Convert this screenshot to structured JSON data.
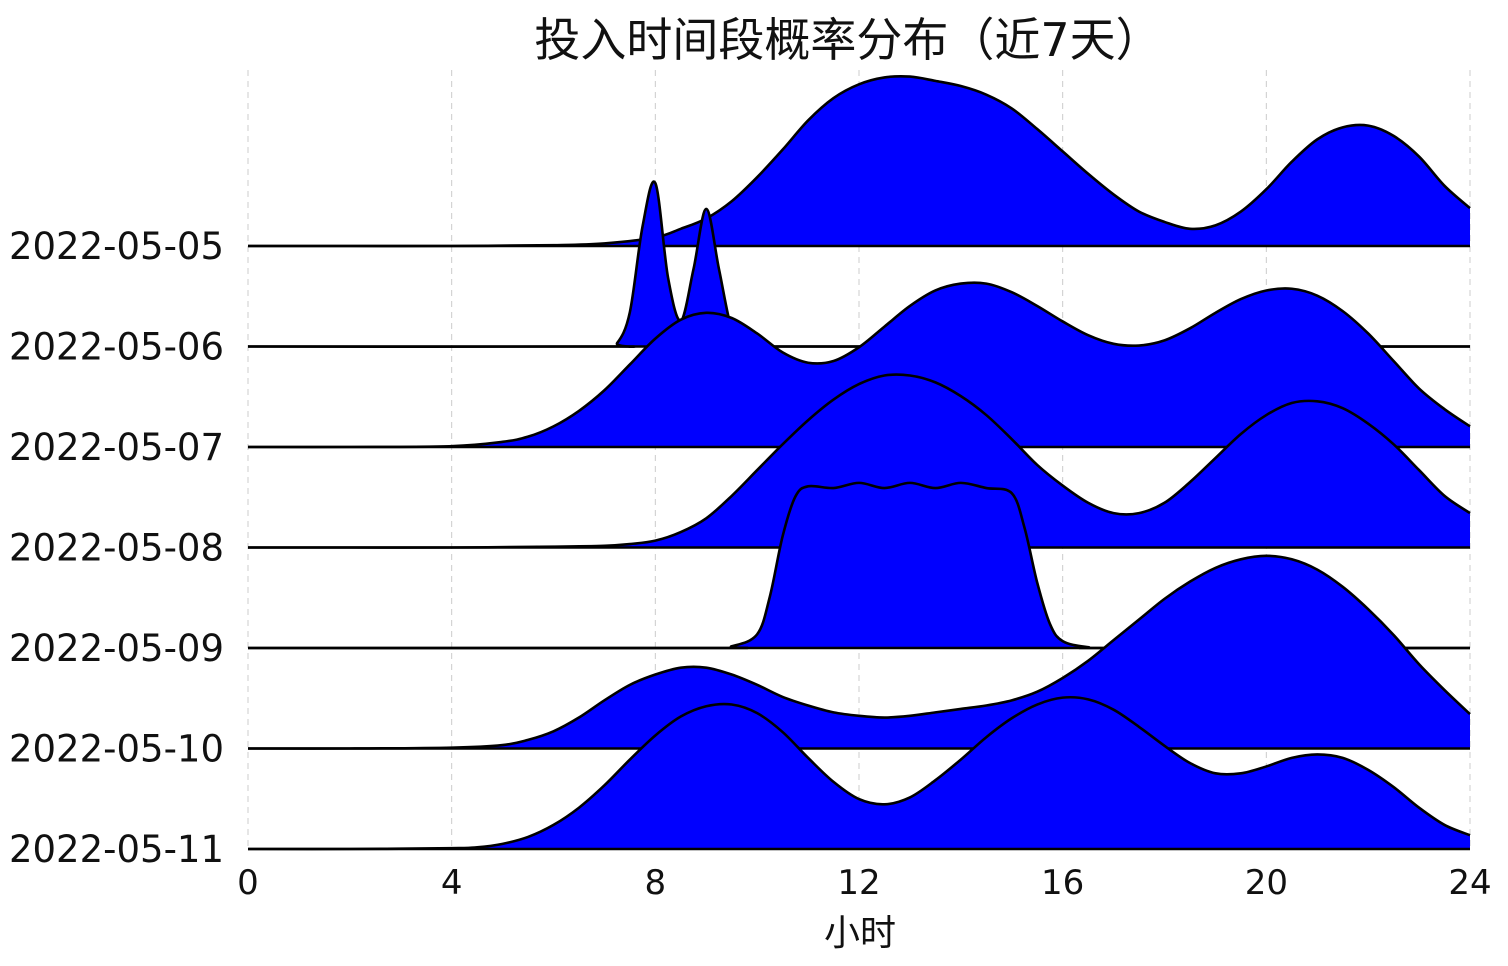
{
  "chart_data": {
    "type": "area",
    "title": "投入时间段概率分布（近7天）",
    "xlabel": "小时",
    "ylabel": "",
    "xlim": [
      0,
      24
    ],
    "xticks": [
      "0",
      "4",
      "8",
      "12",
      "16",
      "20",
      "24"
    ],
    "grid": "vertical dashed",
    "legend": "none",
    "fill_color": "#0000ff",
    "line_color": "#000000",
    "categories": [
      "2022-05-05",
      "2022-05-06",
      "2022-05-07",
      "2022-05-08",
      "2022-05-09",
      "2022-05-10",
      "2022-05-11"
    ],
    "series": [
      {
        "label": "2022-05-05",
        "x": [
          0,
          2,
          4,
          6,
          7,
          8,
          8.5,
          9,
          9.5,
          10,
          10.5,
          11,
          11.5,
          12,
          12.5,
          13,
          13.5,
          14,
          14.5,
          15,
          15.5,
          16,
          16.5,
          17,
          17.5,
          18,
          18.5,
          19,
          19.5,
          20,
          20.5,
          21,
          21.5,
          22,
          22.5,
          23,
          23.5,
          24
        ],
        "y": [
          0,
          0,
          0,
          0.005,
          0.015,
          0.05,
          0.1,
          0.16,
          0.26,
          0.4,
          0.56,
          0.73,
          0.86,
          0.94,
          0.98,
          0.985,
          0.96,
          0.93,
          0.88,
          0.8,
          0.68,
          0.55,
          0.42,
          0.3,
          0.2,
          0.14,
          0.1,
          0.12,
          0.2,
          0.33,
          0.49,
          0.62,
          0.69,
          0.7,
          0.64,
          0.52,
          0.35,
          0.22
        ]
      },
      {
        "label": "2022-05-06",
        "x": [
          0,
          7,
          7.25,
          7.5,
          7.75,
          8,
          8.25,
          8.5,
          8.75,
          9,
          9.25,
          9.5,
          9.75,
          10,
          24
        ],
        "y": [
          0,
          0,
          0.02,
          0.2,
          0.7,
          0.95,
          0.4,
          0.15,
          0.45,
          0.8,
          0.45,
          0.1,
          0.01,
          0,
          0
        ]
      },
      {
        "label": "2022-05-07",
        "x": [
          0,
          2,
          4,
          5,
          5.5,
          6,
          6.5,
          7,
          7.5,
          8,
          8.5,
          9,
          9.5,
          10,
          10.5,
          11,
          11.5,
          12,
          12.5,
          13,
          13.5,
          14,
          14.5,
          15,
          15.5,
          16,
          16.5,
          17,
          17.5,
          18,
          18.5,
          19,
          19.5,
          20,
          20.5,
          21,
          21.5,
          22,
          22.5,
          23,
          23.5,
          24
        ],
        "y": [
          0,
          0,
          0.005,
          0.03,
          0.06,
          0.12,
          0.21,
          0.33,
          0.48,
          0.63,
          0.74,
          0.78,
          0.75,
          0.66,
          0.55,
          0.49,
          0.5,
          0.58,
          0.7,
          0.82,
          0.91,
          0.95,
          0.95,
          0.9,
          0.82,
          0.73,
          0.65,
          0.6,
          0.59,
          0.62,
          0.69,
          0.78,
          0.86,
          0.91,
          0.92,
          0.88,
          0.79,
          0.66,
          0.5,
          0.34,
          0.22,
          0.12
        ]
      },
      {
        "label": "2022-05-08",
        "x": [
          0,
          2,
          4,
          6,
          7,
          7.5,
          8,
          8.5,
          9,
          9.5,
          10,
          10.5,
          11,
          11.5,
          12,
          12.5,
          13,
          13.5,
          14,
          14.5,
          15,
          15.5,
          16,
          16.5,
          17,
          17.5,
          18,
          18.5,
          19,
          19.5,
          20,
          20.5,
          21,
          21.5,
          22,
          22.5,
          23,
          23.5,
          24
        ],
        "y": [
          0,
          0,
          0,
          0.005,
          0.01,
          0.02,
          0.04,
          0.09,
          0.17,
          0.3,
          0.45,
          0.6,
          0.74,
          0.86,
          0.95,
          1.0,
          1.0,
          0.96,
          0.88,
          0.77,
          0.63,
          0.48,
          0.36,
          0.26,
          0.2,
          0.2,
          0.26,
          0.38,
          0.52,
          0.66,
          0.77,
          0.84,
          0.85,
          0.81,
          0.72,
          0.6,
          0.45,
          0.3,
          0.2
        ]
      },
      {
        "label": "2022-05-09",
        "x": [
          0,
          9,
          9.5,
          10,
          10.25,
          10.5,
          10.75,
          11,
          11.5,
          12,
          12.5,
          13,
          13.5,
          14,
          14.5,
          15,
          15.25,
          15.5,
          15.75,
          16,
          16.5,
          17,
          24
        ],
        "y": [
          0,
          0,
          0.01,
          0.08,
          0.3,
          0.65,
          0.88,
          0.94,
          0.93,
          0.96,
          0.93,
          0.96,
          0.93,
          0.96,
          0.93,
          0.9,
          0.7,
          0.38,
          0.14,
          0.04,
          0.005,
          0,
          0
        ]
      },
      {
        "label": "2022-05-10",
        "x": [
          0,
          2,
          4,
          5,
          5.5,
          6,
          6.5,
          7,
          7.5,
          8,
          8.5,
          9,
          9.5,
          10,
          10.5,
          11,
          11.5,
          12,
          12.5,
          13,
          13.5,
          14,
          14.5,
          15,
          15.5,
          16,
          16.5,
          17,
          17.5,
          18,
          18.5,
          19,
          19.5,
          20,
          20.5,
          21,
          21.5,
          22,
          22.5,
          23,
          23.5,
          24
        ],
        "y": [
          0,
          0,
          0.005,
          0.02,
          0.05,
          0.1,
          0.18,
          0.28,
          0.37,
          0.43,
          0.47,
          0.47,
          0.43,
          0.37,
          0.3,
          0.25,
          0.21,
          0.19,
          0.18,
          0.19,
          0.21,
          0.23,
          0.25,
          0.28,
          0.33,
          0.41,
          0.51,
          0.63,
          0.75,
          0.87,
          0.97,
          1.05,
          1.1,
          1.12,
          1.1,
          1.04,
          0.94,
          0.81,
          0.66,
          0.49,
          0.34,
          0.2
        ]
      },
      {
        "label": "2022-05-11",
        "x": [
          0,
          2,
          4,
          4.5,
          5,
          5.5,
          6,
          6.5,
          7,
          7.5,
          8,
          8.5,
          9,
          9.5,
          10,
          10.5,
          11,
          11.5,
          12,
          12.5,
          13,
          13.5,
          14,
          14.5,
          15,
          15.5,
          16,
          16.5,
          17,
          17.5,
          18,
          18.5,
          19,
          19.5,
          20,
          20.5,
          21,
          21.5,
          22,
          22.5,
          23,
          23.5,
          24
        ],
        "y": [
          0,
          0,
          0.005,
          0.01,
          0.03,
          0.07,
          0.14,
          0.24,
          0.37,
          0.52,
          0.66,
          0.77,
          0.83,
          0.84,
          0.79,
          0.68,
          0.53,
          0.39,
          0.29,
          0.26,
          0.3,
          0.4,
          0.52,
          0.65,
          0.76,
          0.84,
          0.88,
          0.87,
          0.81,
          0.71,
          0.6,
          0.5,
          0.44,
          0.44,
          0.48,
          0.53,
          0.55,
          0.53,
          0.46,
          0.36,
          0.24,
          0.14,
          0.08
        ]
      }
    ]
  }
}
